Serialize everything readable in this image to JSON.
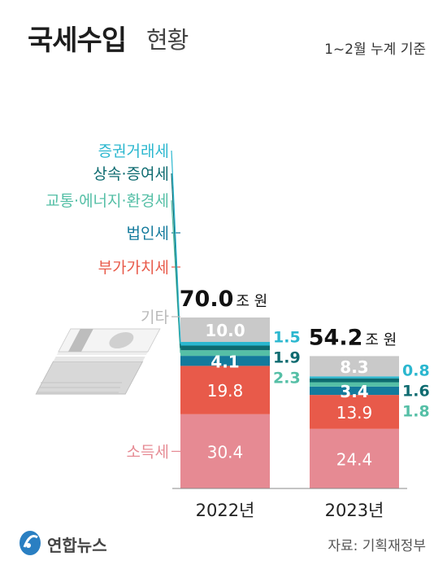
{
  "header": {
    "title_bold": "국세수입",
    "title_light": "현황",
    "basis": "1~2월 누계 기준"
  },
  "footer": {
    "source": "자료: 기획재정부",
    "logo_text": "연합뉴스"
  },
  "colors": {
    "소득세": "#e68a93",
    "부가가치세": "#e85a4a",
    "법인세": "#137a9c",
    "교통·에너지·환경세": "#55bfa6",
    "상속·증여세": "#0e6b70",
    "증권거래세": "#2bb7cf",
    "기타": "#c9c9c9"
  },
  "chart_data": {
    "type": "bar",
    "stacked": true,
    "unit": "조 원",
    "categories": [
      "2022년",
      "2023년"
    ],
    "totals": [
      70.0,
      54.2
    ],
    "series": [
      {
        "name": "소득세",
        "values": [
          30.4,
          24.4
        ]
      },
      {
        "name": "부가가치세",
        "values": [
          19.8,
          13.9
        ]
      },
      {
        "name": "법인세",
        "values": [
          4.1,
          3.4
        ]
      },
      {
        "name": "교통·에너지·환경세",
        "values": [
          2.3,
          1.8
        ]
      },
      {
        "name": "상속·증여세",
        "values": [
          1.9,
          1.6
        ]
      },
      {
        "name": "증권거래세",
        "values": [
          1.5,
          0.8
        ]
      },
      {
        "name": "기타",
        "values": [
          10.0,
          8.3
        ]
      }
    ]
  }
}
